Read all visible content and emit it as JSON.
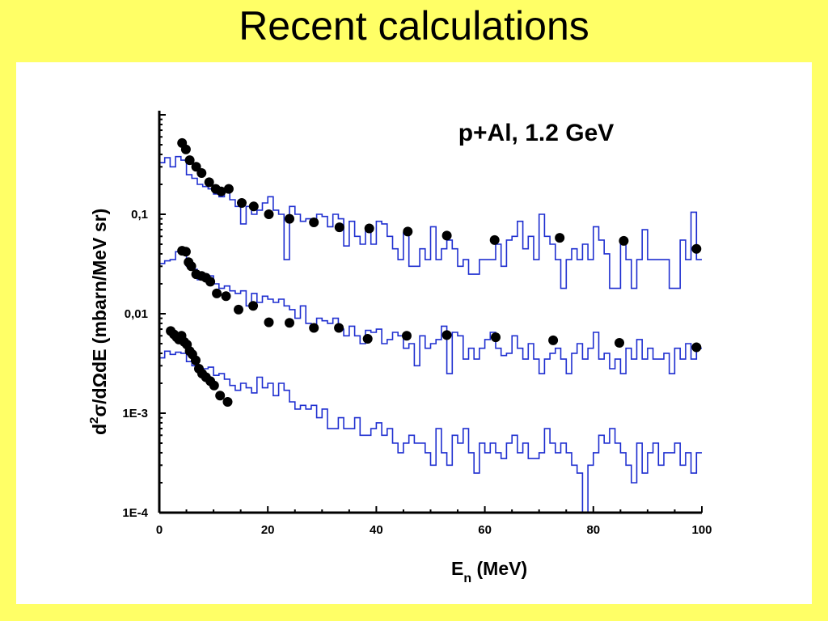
{
  "slide": {
    "title": "Recent calculations"
  },
  "colors": {
    "background": "#ffff66",
    "panel": "#ffffff",
    "histogram": "#1f2fd0",
    "points": "#000000"
  },
  "chart_data": {
    "type": "scatter",
    "title": "p+Al, 1.2 GeV",
    "xlabel_main": "E",
    "xlabel_sub": "n",
    "xlabel_unit": " (MeV)",
    "ylabel_sup": "2",
    "ylabel_parts": [
      "d",
      "σ/dΩdE (mbarn/MeV sr)"
    ],
    "x_ticks": [
      0,
      20,
      40,
      60,
      80,
      100
    ],
    "y_ticks": [
      {
        "value": 0.1,
        "label": "0,1"
      },
      {
        "value": 0.01,
        "label": "0,01"
      },
      {
        "value": 0.001,
        "label": "1E-3"
      },
      {
        "value": 0.0001,
        "label": "1E-4"
      }
    ],
    "xlim": [
      0,
      100
    ],
    "ylim": [
      0.0001,
      1.1
    ],
    "yscale": "log",
    "series": [
      {
        "kind": "histogram",
        "x": [
          0,
          1,
          2,
          3,
          4,
          5,
          6,
          7,
          8,
          9,
          10,
          11,
          12,
          13,
          14,
          15,
          16,
          17,
          18,
          19,
          20,
          21,
          22,
          23,
          24,
          25,
          26,
          27,
          28,
          29,
          30,
          31,
          32,
          33,
          34,
          35,
          36,
          37,
          38,
          39,
          40,
          41,
          42,
          43,
          44,
          45,
          46,
          47,
          48,
          49,
          50,
          51,
          52,
          53,
          54,
          55,
          56,
          57,
          58,
          59,
          60,
          61,
          62,
          63,
          64,
          65,
          66,
          67,
          68,
          69,
          70,
          71,
          72,
          73,
          74,
          75,
          76,
          77,
          78,
          79,
          80,
          81,
          82,
          83,
          84,
          85,
          86,
          87,
          88,
          89,
          90,
          91,
          92,
          93,
          94,
          95,
          96,
          97,
          98,
          99
        ],
        "values": [
          0.33,
          0.37,
          0.3,
          0.38,
          0.35,
          0.25,
          0.23,
          0.2,
          0.19,
          0.18,
          0.16,
          0.15,
          0.17,
          0.14,
          0.12,
          0.08,
          0.12,
          0.1,
          0.11,
          0.13,
          0.15,
          0.11,
          0.1,
          0.035,
          0.12,
          0.1,
          0.085,
          0.09,
          0.08,
          0.1,
          0.095,
          0.075,
          0.1,
          0.09,
          0.048,
          0.085,
          0.06,
          0.05,
          0.07,
          0.05,
          0.085,
          0.08,
          0.06,
          0.045,
          0.035,
          0.065,
          0.03,
          0.03,
          0.045,
          0.035,
          0.075,
          0.035,
          0.045,
          0.055,
          0.045,
          0.03,
          0.035,
          0.025,
          0.025,
          0.035,
          0.035,
          0.035,
          0.05,
          0.03,
          0.055,
          0.06,
          0.085,
          0.045,
          0.06,
          0.035,
          0.1,
          0.06,
          0.05,
          0.035,
          0.018,
          0.035,
          0.045,
          0.035,
          0.05,
          0.035,
          0.075,
          0.055,
          0.04,
          0.018,
          0.018,
          0.05,
          0.035,
          0.018,
          0.035,
          0.07,
          0.035,
          0.035,
          0.035,
          0.035,
          0.018,
          0.018,
          0.055,
          0.035,
          0.105,
          0.035
        ]
      },
      {
        "kind": "histogram",
        "x": [
          0,
          1,
          2,
          3,
          4,
          5,
          6,
          7,
          8,
          9,
          10,
          11,
          12,
          13,
          14,
          15,
          16,
          17,
          18,
          19,
          20,
          21,
          22,
          23,
          24,
          25,
          26,
          27,
          28,
          29,
          30,
          31,
          32,
          33,
          34,
          35,
          36,
          37,
          38,
          39,
          40,
          41,
          42,
          43,
          44,
          45,
          46,
          47,
          48,
          49,
          50,
          51,
          52,
          53,
          54,
          55,
          56,
          57,
          58,
          59,
          60,
          61,
          62,
          63,
          64,
          65,
          66,
          67,
          68,
          69,
          70,
          71,
          72,
          73,
          74,
          75,
          76,
          77,
          78,
          79,
          80,
          81,
          82,
          83,
          84,
          85,
          86,
          87,
          88,
          89,
          90,
          91,
          92,
          93,
          94,
          95,
          96,
          97,
          98,
          99
        ],
        "values": [
          0.032,
          0.034,
          0.035,
          0.042,
          0.04,
          0.03,
          0.028,
          0.022,
          0.025,
          0.024,
          0.02,
          0.018,
          0.019,
          0.017,
          0.016,
          0.017,
          0.012,
          0.016,
          0.013,
          0.015,
          0.014,
          0.013,
          0.014,
          0.012,
          0.011,
          0.009,
          0.012,
          0.008,
          0.007,
          0.009,
          0.0085,
          0.008,
          0.009,
          0.007,
          0.006,
          0.0075,
          0.006,
          0.005,
          0.0068,
          0.0065,
          0.007,
          0.005,
          0.0055,
          0.0065,
          0.006,
          0.0045,
          0.005,
          0.003,
          0.006,
          0.0045,
          0.005,
          0.0055,
          0.0075,
          0.0025,
          0.0065,
          0.006,
          0.0035,
          0.0045,
          0.0035,
          0.0045,
          0.0055,
          0.0065,
          0.0045,
          0.0038,
          0.004,
          0.006,
          0.0045,
          0.0035,
          0.005,
          0.0035,
          0.0025,
          0.0035,
          0.004,
          0.0045,
          0.0035,
          0.0025,
          0.004,
          0.005,
          0.0035,
          0.0045,
          0.0065,
          0.0035,
          0.004,
          0.0028,
          0.0035,
          0.0025,
          0.0045,
          0.0035,
          0.0055,
          0.0035,
          0.0045,
          0.0035,
          0.0035,
          0.004,
          0.0025,
          0.0045,
          0.0035,
          0.005,
          0.0035,
          0.0045
        ]
      },
      {
        "kind": "histogram",
        "x": [
          0,
          1,
          2,
          3,
          4,
          5,
          6,
          7,
          8,
          9,
          10,
          11,
          12,
          13,
          14,
          15,
          16,
          17,
          18,
          19,
          20,
          21,
          22,
          23,
          24,
          25,
          26,
          27,
          28,
          29,
          30,
          31,
          32,
          33,
          34,
          35,
          36,
          37,
          38,
          39,
          40,
          41,
          42,
          43,
          44,
          45,
          46,
          47,
          48,
          49,
          50,
          51,
          52,
          53,
          54,
          55,
          56,
          57,
          58,
          59,
          60,
          61,
          62,
          63,
          64,
          65,
          66,
          67,
          68,
          69,
          70,
          71,
          72,
          73,
          74,
          75,
          76,
          77,
          78,
          79,
          80,
          81,
          82,
          83,
          84,
          85,
          86,
          87,
          88,
          89,
          90,
          91,
          92,
          93,
          94,
          95,
          96,
          97,
          98,
          99
        ],
        "values": [
          0.0036,
          0.0042,
          0.0039,
          0.0041,
          0.004,
          0.0033,
          0.003,
          0.0026,
          0.0028,
          0.0029,
          0.0024,
          0.0025,
          0.0022,
          0.0019,
          0.0017,
          0.002,
          0.0018,
          0.0016,
          0.0023,
          0.0018,
          0.002,
          0.0015,
          0.002,
          0.0017,
          0.0013,
          0.0011,
          0.0012,
          0.0011,
          0.0012,
          0.0009,
          0.0011,
          0.0007,
          0.0007,
          0.0009,
          0.0007,
          0.0007,
          0.0009,
          0.0006,
          0.0006,
          0.0007,
          0.0008,
          0.0006,
          0.0007,
          0.0005,
          0.0004,
          0.0005,
          0.0006,
          0.0005,
          0.0005,
          0.0004,
          0.0003,
          0.0007,
          0.0004,
          0.0003,
          0.0006,
          0.0005,
          0.0007,
          0.0004,
          0.00025,
          0.0005,
          0.0004,
          0.0005,
          0.0004,
          0.00035,
          0.0005,
          0.0006,
          0.0004,
          0.0005,
          0.00035,
          0.00035,
          0.0004,
          0.0007,
          0.0005,
          0.0004,
          0.0005,
          0.0004,
          0.0003,
          0.00025,
          0.0001,
          0.0003,
          0.0004,
          0.0006,
          0.0005,
          0.0007,
          0.0005,
          0.0004,
          0.0003,
          0.0002,
          0.0005,
          0.00025,
          0.0004,
          0.0005,
          0.0003,
          0.0004,
          0.0004,
          0.0005,
          0.0003,
          0.0004,
          0.00025,
          0.0004
        ]
      },
      {
        "kind": "points",
        "x": [
          4.2,
          4.9,
          5.6,
          6.8,
          7.8,
          9.2,
          10.4,
          11.4,
          12.8,
          15.2,
          17.4,
          20.2,
          24,
          28.5,
          33.2,
          38.7,
          45.8,
          53,
          61.8,
          73.8,
          85.6,
          99
        ],
        "y": [
          0.52,
          0.45,
          0.35,
          0.3,
          0.26,
          0.21,
          0.18,
          0.17,
          0.18,
          0.13,
          0.12,
          0.1,
          0.09,
          0.083,
          0.074,
          0.072,
          0.067,
          0.061,
          0.055,
          0.058,
          0.054,
          0.045
        ]
      },
      {
        "kind": "points",
        "x": [
          4.2,
          4.9,
          5.4,
          5.9,
          6.8,
          7.8,
          8.6,
          9.4,
          10.6,
          12.3,
          14.6,
          17.3,
          20.2,
          24,
          28.5,
          33.1,
          38.4,
          45.6,
          53,
          62,
          72.6,
          84.8,
          99
        ],
        "y": [
          0.043,
          0.042,
          0.033,
          0.03,
          0.025,
          0.024,
          0.023,
          0.021,
          0.016,
          0.015,
          0.011,
          0.012,
          0.0082,
          0.0081,
          0.0072,
          0.0072,
          0.0056,
          0.006,
          0.0061,
          0.0058,
          0.0054,
          0.0051,
          0.0046
        ]
      },
      {
        "kind": "points",
        "x": [
          2.1,
          2.7,
          3.2,
          3.6,
          4.1,
          4.6,
          5.1,
          5.6,
          6.1,
          6.7,
          7.3,
          7.9,
          8.6,
          9.4,
          10.1,
          11.2,
          12.6
        ],
        "y": [
          0.0067,
          0.0062,
          0.0058,
          0.0055,
          0.006,
          0.0052,
          0.0049,
          0.0042,
          0.0039,
          0.0034,
          0.0028,
          0.0025,
          0.0023,
          0.0021,
          0.0019,
          0.0015,
          0.0013
        ]
      }
    ]
  }
}
